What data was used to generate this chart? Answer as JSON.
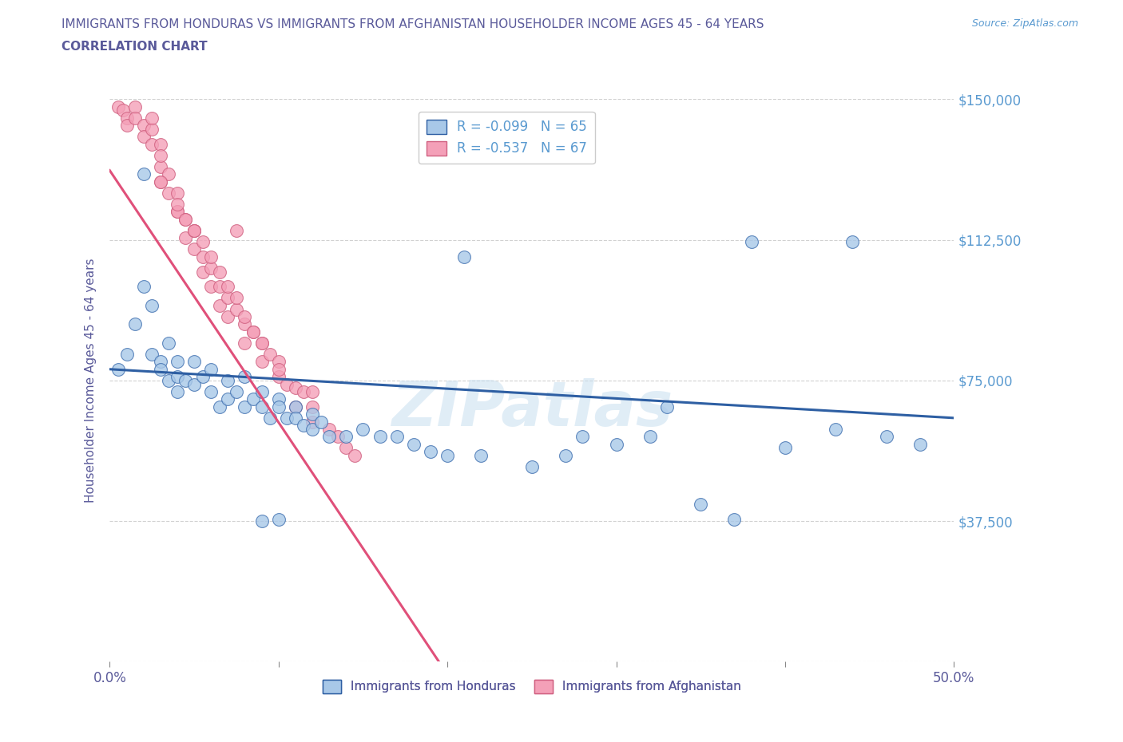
{
  "title_line1": "IMMIGRANTS FROM HONDURAS VS IMMIGRANTS FROM AFGHANISTAN HOUSEHOLDER INCOME AGES 45 - 64 YEARS",
  "title_line2": "CORRELATION CHART",
  "source_text": "Source: ZipAtlas.com",
  "ylabel": "Householder Income Ages 45 - 64 years",
  "xlim": [
    0.0,
    0.5
  ],
  "ylim": [
    0,
    150000
  ],
  "yticks": [
    0,
    37500,
    75000,
    112500,
    150000
  ],
  "ytick_labels": [
    "",
    "$37,500",
    "$75,000",
    "$112,500",
    "$150,000"
  ],
  "xticks": [
    0.0,
    0.1,
    0.2,
    0.3,
    0.4,
    0.5
  ],
  "xtick_labels": [
    "0.0%",
    "",
    "",
    "",
    "",
    "50.0%"
  ],
  "color_honduras": "#a8c8e8",
  "color_afghanistan": "#f4a0b8",
  "color_line_honduras": "#2e5fa3",
  "color_line_afghanistan": "#e0507a",
  "color_title": "#5a5a9a",
  "color_ytick_labels": "#5a9ad0",
  "color_xtick_labels": "#5a5a9a",
  "color_grid": "#cccccc",
  "watermark": "ZIPatlas",
  "legend_label1": "R = -0.099   N = 65",
  "legend_label2": "R = -0.537   N = 67",
  "bottom_legend1": "Immigrants from Honduras",
  "bottom_legend2": "Immigrants from Afghanistan",
  "honduras_x": [
    0.005,
    0.01,
    0.015,
    0.02,
    0.02,
    0.025,
    0.025,
    0.03,
    0.03,
    0.035,
    0.035,
    0.04,
    0.04,
    0.04,
    0.045,
    0.05,
    0.05,
    0.055,
    0.06,
    0.06,
    0.065,
    0.07,
    0.07,
    0.075,
    0.08,
    0.08,
    0.085,
    0.09,
    0.09,
    0.095,
    0.1,
    0.1,
    0.105,
    0.11,
    0.11,
    0.115,
    0.12,
    0.12,
    0.125,
    0.13,
    0.14,
    0.15,
    0.16,
    0.17,
    0.18,
    0.19,
    0.2,
    0.22,
    0.25,
    0.27,
    0.3,
    0.32,
    0.35,
    0.37,
    0.4,
    0.43,
    0.46,
    0.48,
    0.21,
    0.28,
    0.33,
    0.38,
    0.44,
    0.09,
    0.1
  ],
  "honduras_y": [
    78000,
    82000,
    90000,
    130000,
    100000,
    82000,
    95000,
    80000,
    78000,
    75000,
    85000,
    80000,
    76000,
    72000,
    75000,
    80000,
    74000,
    76000,
    78000,
    72000,
    68000,
    75000,
    70000,
    72000,
    76000,
    68000,
    70000,
    72000,
    68000,
    65000,
    70000,
    68000,
    65000,
    68000,
    65000,
    63000,
    66000,
    62000,
    64000,
    60000,
    60000,
    62000,
    60000,
    60000,
    58000,
    56000,
    55000,
    55000,
    52000,
    55000,
    58000,
    60000,
    42000,
    38000,
    57000,
    62000,
    60000,
    58000,
    108000,
    60000,
    68000,
    112000,
    112000,
    37500,
    38000
  ],
  "afghanistan_x": [
    0.005,
    0.008,
    0.01,
    0.01,
    0.015,
    0.015,
    0.02,
    0.02,
    0.025,
    0.025,
    0.03,
    0.03,
    0.03,
    0.035,
    0.035,
    0.04,
    0.04,
    0.045,
    0.045,
    0.05,
    0.05,
    0.055,
    0.055,
    0.06,
    0.06,
    0.065,
    0.065,
    0.07,
    0.07,
    0.075,
    0.08,
    0.08,
    0.085,
    0.09,
    0.09,
    0.095,
    0.1,
    0.1,
    0.105,
    0.11,
    0.11,
    0.115,
    0.12,
    0.12,
    0.13,
    0.135,
    0.14,
    0.145,
    0.075,
    0.025,
    0.03,
    0.04,
    0.05,
    0.06,
    0.07,
    0.08,
    0.09,
    0.1,
    0.055,
    0.065,
    0.075,
    0.045,
    0.085,
    0.12,
    0.03,
    0.04,
    0.05
  ],
  "afghanistan_y": [
    148000,
    147000,
    145000,
    143000,
    148000,
    145000,
    143000,
    140000,
    142000,
    138000,
    138000,
    132000,
    128000,
    130000,
    125000,
    125000,
    120000,
    118000,
    113000,
    115000,
    110000,
    108000,
    104000,
    105000,
    100000,
    100000,
    95000,
    97000,
    92000,
    94000,
    90000,
    85000,
    88000,
    85000,
    80000,
    82000,
    80000,
    76000,
    74000,
    73000,
    68000,
    72000,
    68000,
    64000,
    62000,
    60000,
    57000,
    55000,
    115000,
    145000,
    135000,
    120000,
    115000,
    108000,
    100000,
    92000,
    85000,
    78000,
    112000,
    104000,
    97000,
    118000,
    88000,
    72000,
    128000,
    122000,
    115000
  ]
}
